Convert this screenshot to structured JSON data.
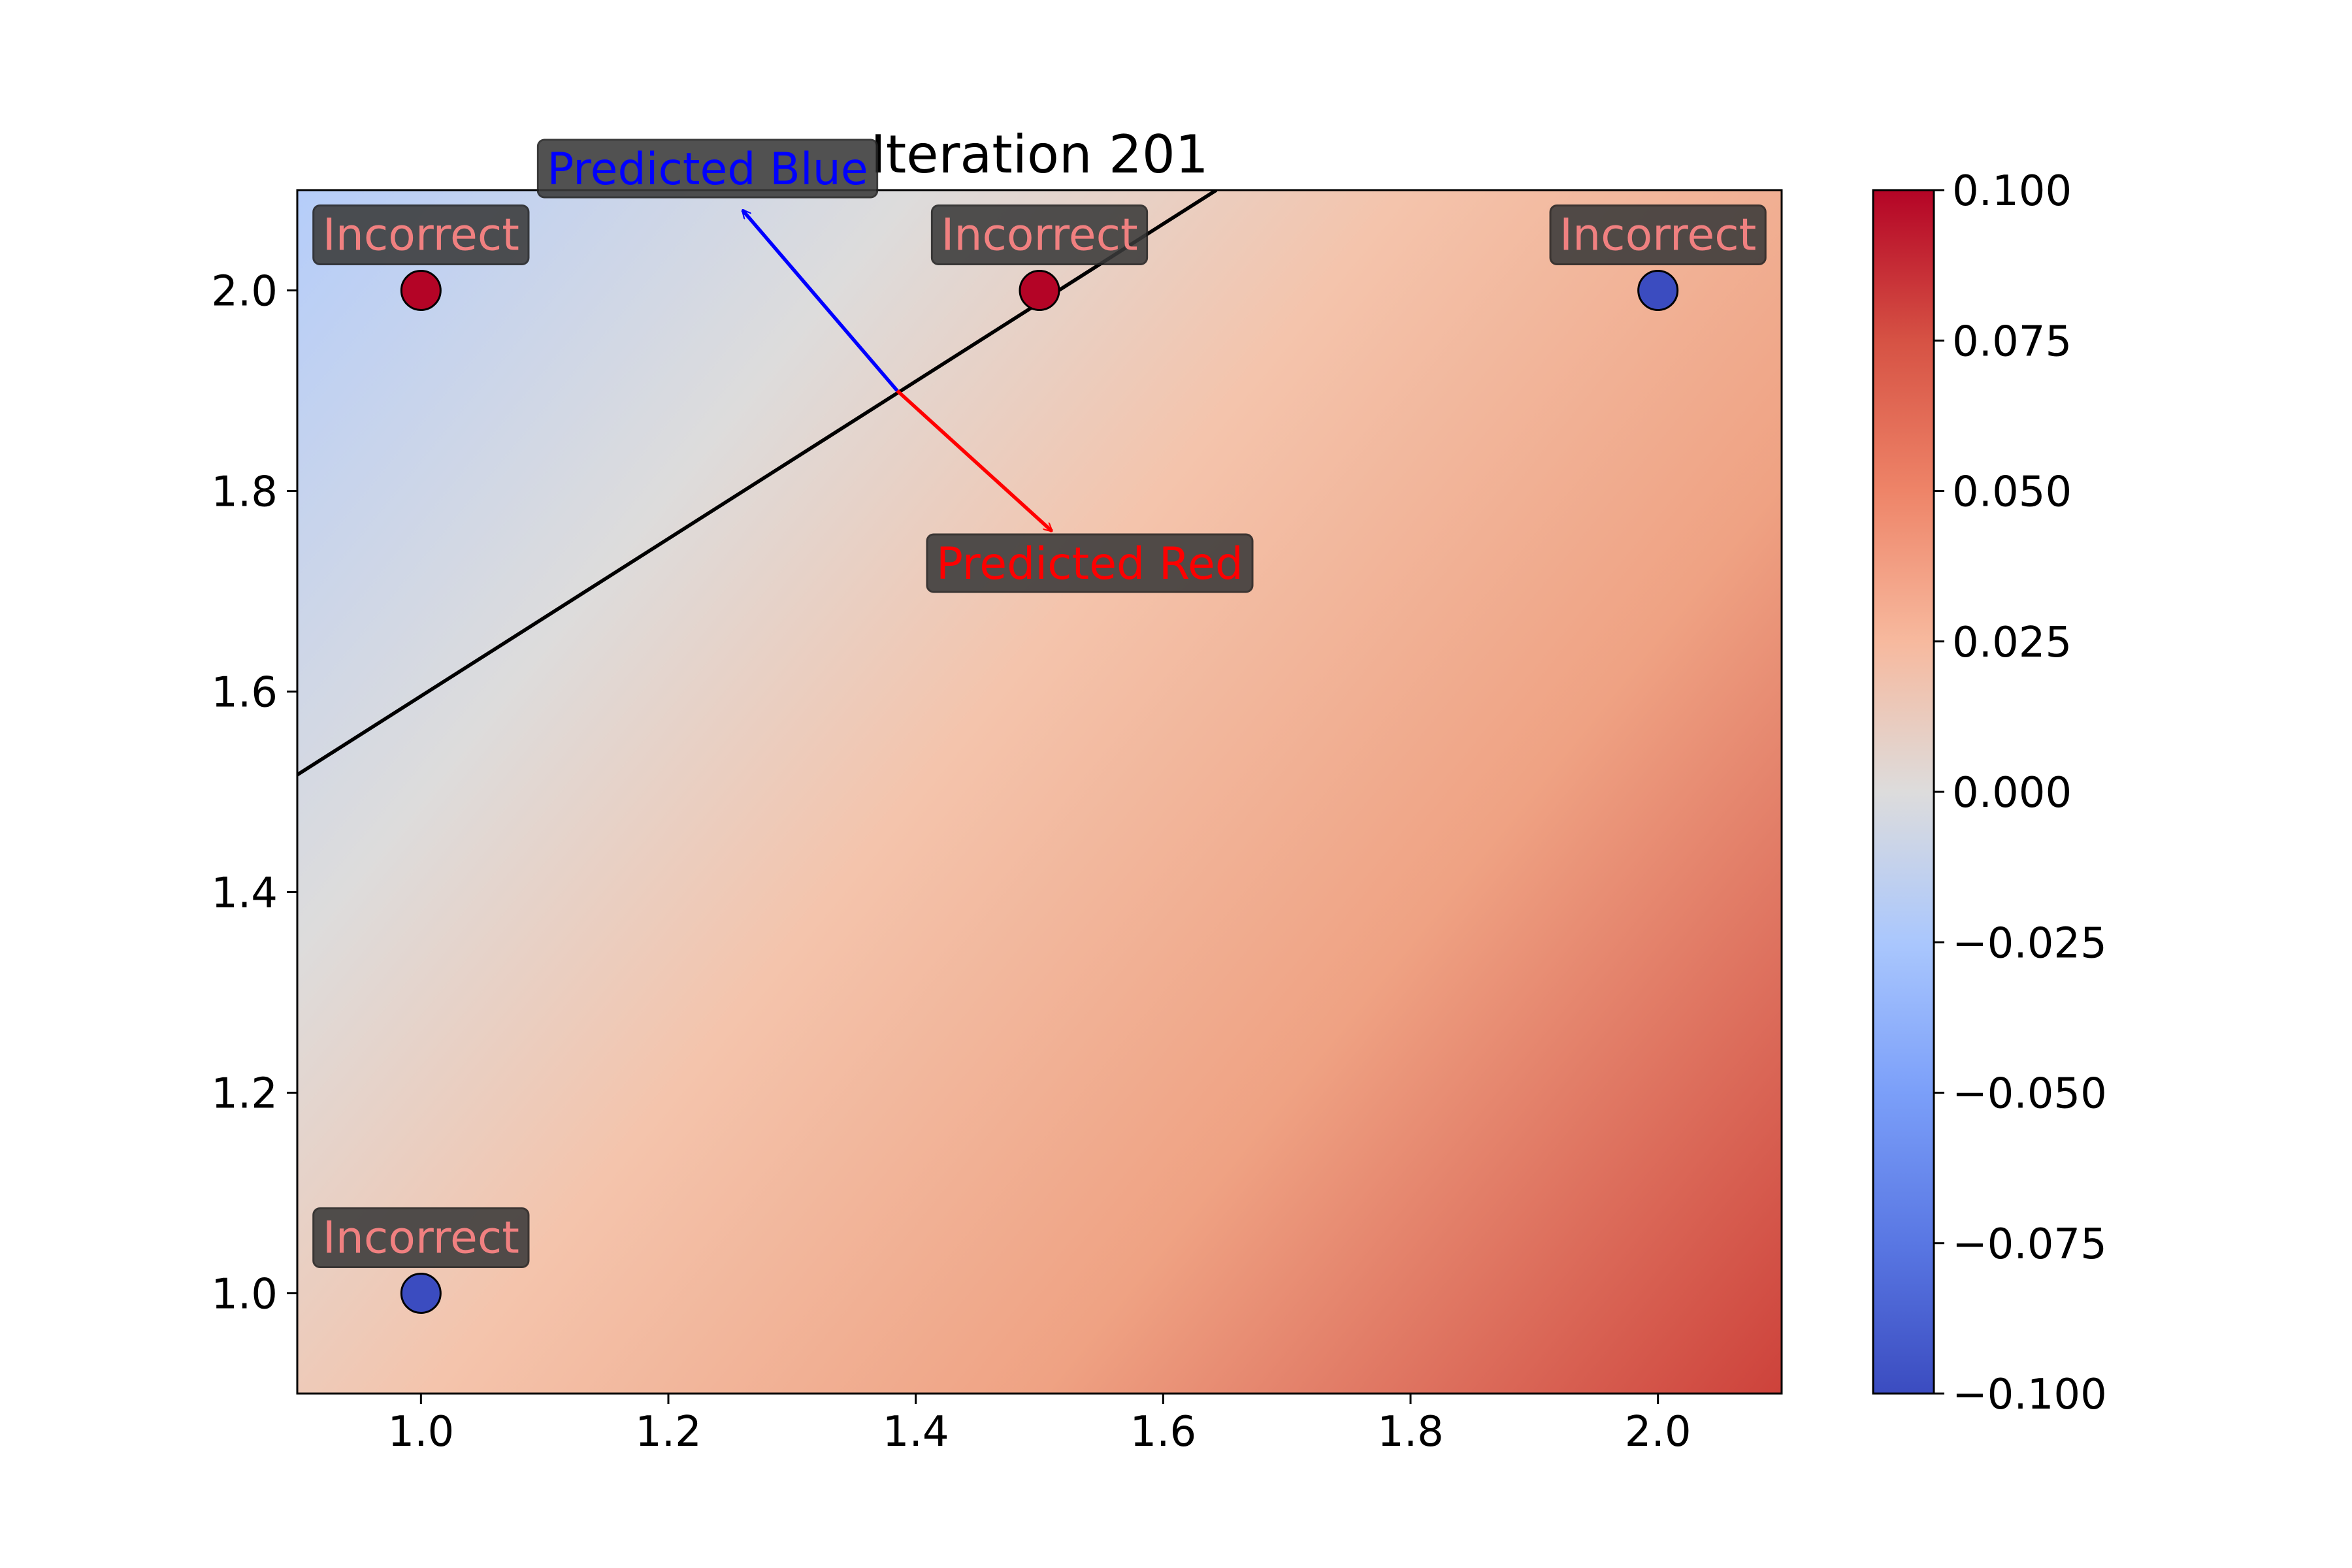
{
  "chart_data": {
    "type": "scatter",
    "title": "Iteration 201",
    "xlabel": "",
    "ylabel": "",
    "xlim": [
      0.9,
      2.1
    ],
    "ylim": [
      0.9,
      2.1
    ],
    "xticks": [
      "1.0",
      "1.2",
      "1.4",
      "1.6",
      "1.8",
      "2.0"
    ],
    "yticks": [
      "1.0",
      "1.2",
      "1.4",
      "1.6",
      "1.8",
      "2.0"
    ],
    "grid": false,
    "colormap": "coolwarm",
    "background_field": {
      "description": "linear decision function shown as a color gradient",
      "vmin": -0.1,
      "vmax": 0.1
    },
    "decision_boundary": {
      "points": [
        [
          0.9,
          1.517
        ],
        [
          1.643,
          2.1
        ]
      ]
    },
    "normal_arrows": {
      "origin": [
        1.385,
        1.9
      ],
      "blue_tip": [
        1.26,
        2.08
      ],
      "red_tip": [
        1.51,
        1.76
      ],
      "blue_label": "Predicted Blue",
      "red_label": "Predicted Red",
      "blue_color": "#0000ff",
      "red_color": "#ff0000"
    },
    "points": [
      {
        "x": 1.0,
        "y": 2.0,
        "class": "red",
        "color": "#b40426",
        "label": "Incorrect"
      },
      {
        "x": 1.5,
        "y": 2.0,
        "class": "red",
        "color": "#b40426",
        "label": "Incorrect"
      },
      {
        "x": 2.0,
        "y": 2.0,
        "class": "blue",
        "color": "#3b4cc0",
        "label": "Incorrect"
      },
      {
        "x": 1.0,
        "y": 1.0,
        "class": "blue",
        "color": "#3b4cc0",
        "label": "Incorrect"
      }
    ],
    "point_label_color": "#f08080",
    "label_box_color": "#3a3a3a",
    "colorbar": {
      "ticks": [
        "0.100",
        "0.075",
        "0.050",
        "0.025",
        "0.000",
        "−0.025",
        "−0.050",
        "−0.075",
        "−0.100"
      ],
      "min": -0.1,
      "max": 0.1
    }
  }
}
